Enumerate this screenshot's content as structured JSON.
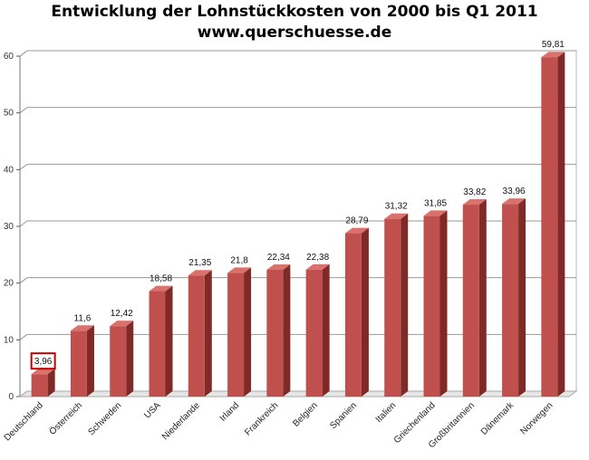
{
  "chart_data": {
    "type": "bar",
    "title": "Entwicklung der Lohnstückkosten  von 2000 bis Q1 2011",
    "subtitle": "www.querschuesse.de",
    "categories": [
      "Deutschland",
      "Österreich",
      "Schweden",
      "USA",
      "Niederlande",
      "Irland",
      "Frankreich",
      "Belgien",
      "Spanien",
      "Italien",
      "Griechenland",
      "Großbritannien",
      "Dänemark",
      "Norwegen"
    ],
    "values": [
      3.96,
      11.6,
      12.42,
      18.58,
      21.35,
      21.8,
      22.34,
      22.38,
      28.79,
      31.32,
      31.85,
      33.82,
      33.96,
      59.81
    ],
    "data_labels": [
      "3,96",
      "11,6",
      "12,42",
      "18,58",
      "21,35",
      "21,8",
      "22,34",
      "22,38",
      "28,79",
      "31,32",
      "31,85",
      "33,82",
      "33,96",
      "59,81"
    ],
    "highlighted": "Deutschland",
    "ylim": [
      0,
      60
    ],
    "yticks": [
      0,
      10,
      20,
      30,
      40,
      50,
      60
    ],
    "grid": true,
    "bar_color": "#c0504d",
    "highlight_color": "#c00000"
  }
}
